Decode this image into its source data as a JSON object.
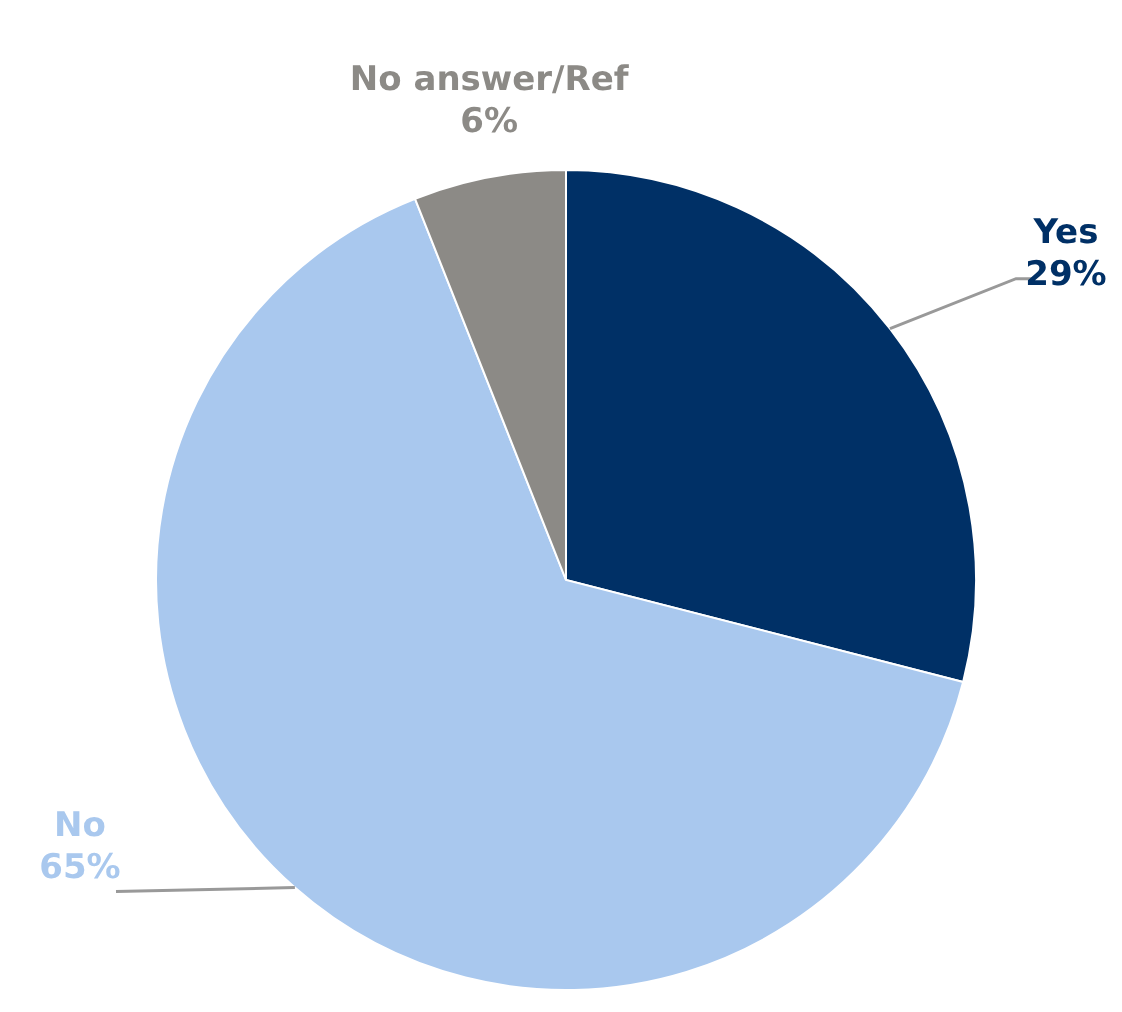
{
  "chart_data": {
    "type": "pie",
    "categories": [
      "Yes",
      "No",
      "No answer/Ref"
    ],
    "values": [
      29,
      65,
      6
    ],
    "colors": [
      "#003066",
      "#a9c8ee",
      "#8c8a86"
    ],
    "value_labels": [
      "29%",
      "65%",
      "6%"
    ]
  }
}
